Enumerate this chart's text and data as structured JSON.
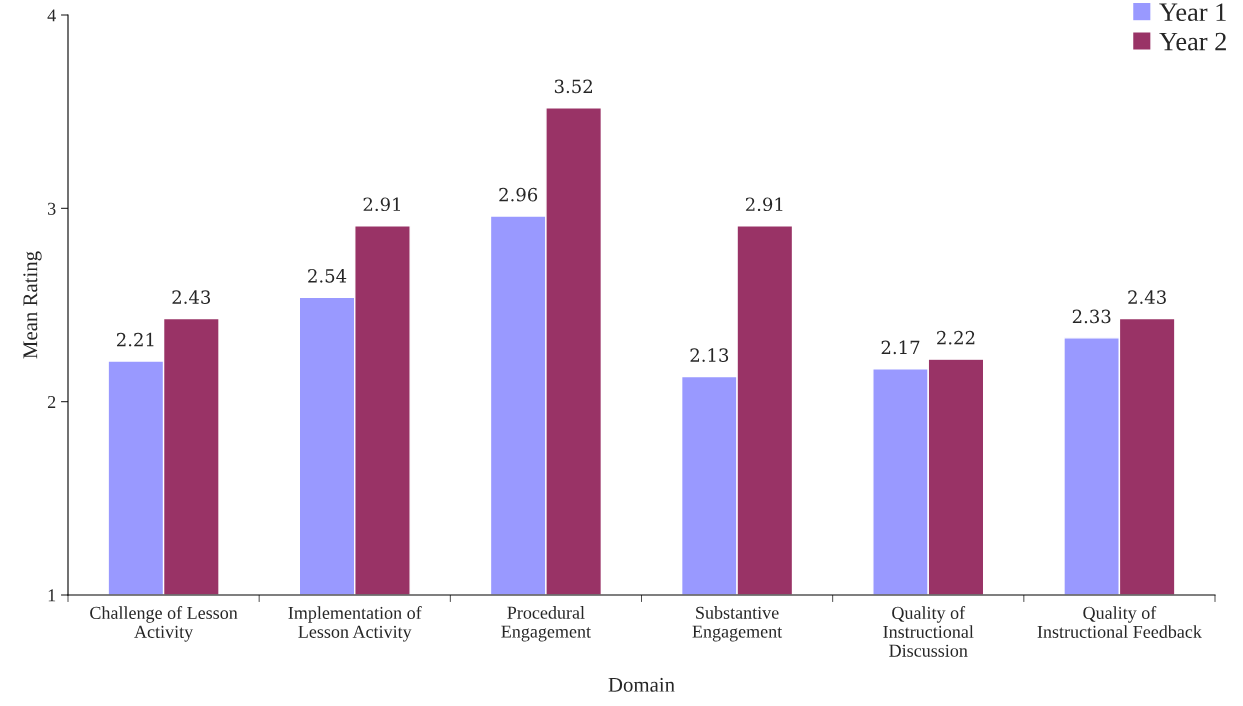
{
  "chart_data": {
    "type": "bar",
    "xlabel": "Domain",
    "ylabel": "Mean Rating",
    "categories": [
      "Challenge of Lesson\nActivity",
      "Implementation of\nLesson Activity",
      "Procedural\nEngagement",
      "Substantive\nEngagement",
      "Quality of\nInstructional\nDiscussion",
      "Quality of\nInstructional Feedback"
    ],
    "series": [
      {
        "name": "Year 1",
        "color": "#9999ff",
        "values": [
          2.21,
          2.54,
          2.96,
          2.13,
          2.17,
          2.33
        ]
      },
      {
        "name": "Year 2",
        "color": "#993366",
        "values": [
          2.43,
          2.91,
          3.52,
          2.91,
          2.22,
          2.43
        ]
      }
    ],
    "ylim": [
      1,
      4
    ],
    "yticks": [
      1,
      2,
      3,
      4
    ],
    "data_labels": true,
    "legend": "top right",
    "grid": false
  }
}
